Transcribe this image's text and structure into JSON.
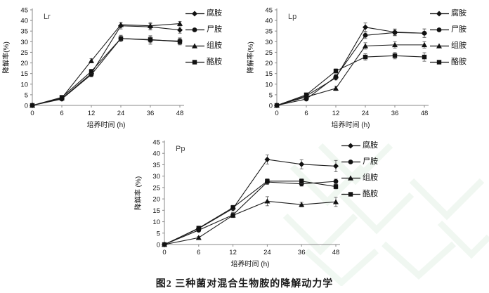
{
  "page": {
    "background": "#ffffff",
    "caption": "图2 三种菌对混合生物胺的降解动力学",
    "watermark_color": "#e4f2e7"
  },
  "chart_data": [
    {
      "id": "lr",
      "type": "line",
      "title": "Lr",
      "xlabel": "培养时间 (h)",
      "ylabel": "降解率(%)",
      "x_categories": [
        "0",
        "6",
        "12",
        "24",
        "36",
        "48"
      ],
      "y_ticks": [
        0,
        5,
        10,
        15,
        20,
        25,
        30,
        35,
        40,
        45
      ],
      "ylim": [
        0,
        45
      ],
      "grid": false,
      "legend_position": "right",
      "line_color": "#1c1c1c",
      "marker_color": "#111111",
      "series": [
        {
          "name": "腐胺",
          "marker": "diamond",
          "values": [
            0,
            3.2,
            15,
            37.5,
            37,
            35.5
          ],
          "err": [
            0,
            0.5,
            1,
            1.5,
            1.5,
            1.5
          ]
        },
        {
          "name": "尸胺",
          "marker": "circle",
          "values": [
            0,
            3,
            14.5,
            31.5,
            30.8,
            30.3
          ],
          "err": [
            0,
            0.5,
            1,
            1.5,
            2,
            1.5
          ]
        },
        {
          "name": "组胺",
          "marker": "triangle",
          "values": [
            0,
            3.5,
            21,
            38,
            37.5,
            38.5
          ],
          "err": [
            0,
            0.5,
            1,
            1,
            1.5,
            1
          ]
        },
        {
          "name": "酪胺",
          "marker": "square",
          "values": [
            0,
            3.8,
            16,
            31.5,
            31,
            30
          ],
          "err": [
            0,
            0.5,
            1,
            1.5,
            1.5,
            1.5
          ]
        }
      ]
    },
    {
      "id": "lp",
      "type": "line",
      "title": "Lp",
      "xlabel": "培养时间 (h)",
      "ylabel": "降解率(%)",
      "x_categories": [
        "0",
        "6",
        "12",
        "24",
        "36",
        "48"
      ],
      "y_ticks": [
        0,
        5,
        10,
        15,
        20,
        25,
        30,
        35,
        40,
        45
      ],
      "ylim": [
        0,
        45
      ],
      "grid": false,
      "legend_position": "right",
      "line_color": "#1c1c1c",
      "marker_color": "#111111",
      "series": [
        {
          "name": "腐胺",
          "marker": "diamond",
          "values": [
            0,
            4.5,
            13,
            36.8,
            34.5,
            34
          ],
          "err": [
            0,
            0.5,
            1,
            2,
            1.5,
            2
          ]
        },
        {
          "name": "尸胺",
          "marker": "circle",
          "values": [
            0,
            3,
            13.5,
            33,
            34.3,
            34
          ],
          "err": [
            0,
            0.5,
            1,
            1.5,
            1.5,
            2
          ]
        },
        {
          "name": "组胺",
          "marker": "triangle",
          "values": [
            0,
            4,
            8,
            28,
            28.5,
            28.5
          ],
          "err": [
            0,
            0.5,
            1,
            1.5,
            1.5,
            1.5
          ]
        },
        {
          "name": "酪胺",
          "marker": "square",
          "values": [
            0,
            5,
            16.2,
            22.8,
            23.4,
            22.8
          ],
          "err": [
            0,
            0.5,
            1,
            1.5,
            1.5,
            2
          ]
        }
      ]
    },
    {
      "id": "pp",
      "type": "line",
      "title": "Pp",
      "xlabel": "培养时间 (h)",
      "ylabel": "降解率 (%)",
      "x_categories": [
        "0",
        "6",
        "12",
        "24",
        "36",
        "48"
      ],
      "y_ticks": [
        0,
        5,
        10,
        15,
        20,
        25,
        30,
        35,
        40,
        45
      ],
      "ylim": [
        0,
        45
      ],
      "grid": false,
      "legend_position": "right",
      "line_color": "#1c1c1c",
      "marker_color": "#111111",
      "series": [
        {
          "name": "腐胺",
          "marker": "diamond",
          "values": [
            0,
            7,
            15.8,
            37.3,
            35.2,
            34.4
          ],
          "err": [
            0,
            0.5,
            1,
            2,
            2,
            2.5
          ]
        },
        {
          "name": "尸胺",
          "marker": "circle",
          "values": [
            0,
            6.3,
            13,
            27.4,
            26.6,
            27.7
          ],
          "err": [
            0,
            0.5,
            1,
            1,
            1,
            1
          ]
        },
        {
          "name": "组胺",
          "marker": "triangle",
          "values": [
            0,
            3,
            12.8,
            19,
            17.5,
            18.7
          ],
          "err": [
            0,
            0.5,
            1,
            2,
            1,
            2
          ]
        },
        {
          "name": "酪胺",
          "marker": "square",
          "values": [
            0,
            7.2,
            16.2,
            27.8,
            27.8,
            25.4
          ],
          "err": [
            0,
            0.5,
            1,
            1,
            1,
            1
          ]
        }
      ]
    }
  ]
}
